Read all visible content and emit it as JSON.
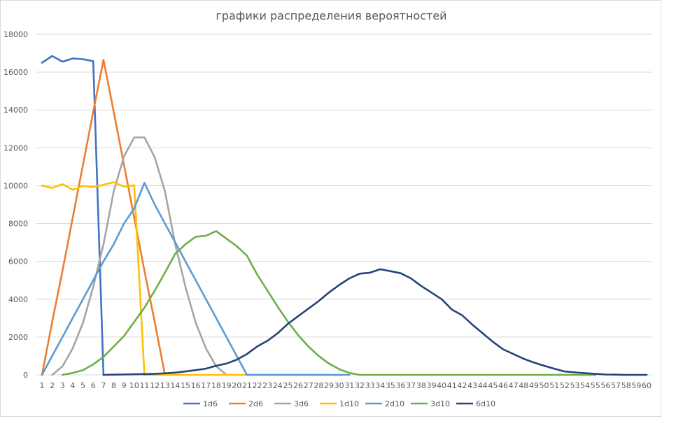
{
  "chart_data": {
    "type": "line",
    "title": "графики распределения вероятностей",
    "xlabel": "",
    "ylabel": "",
    "ylim": [
      0,
      18000
    ],
    "yticks": [
      0,
      2000,
      4000,
      6000,
      8000,
      10000,
      12000,
      14000,
      16000,
      18000
    ],
    "grid": true,
    "legend_position": "bottom",
    "x": [
      1,
      2,
      3,
      4,
      5,
      6,
      7,
      8,
      9,
      10,
      11,
      12,
      13,
      14,
      15,
      16,
      17,
      18,
      19,
      20,
      21,
      22,
      23,
      24,
      25,
      26,
      27,
      28,
      29,
      30,
      31,
      32,
      33,
      34,
      35,
      36,
      37,
      38,
      39,
      40,
      41,
      42,
      43,
      44,
      45,
      46,
      47,
      48,
      49,
      50,
      51,
      52,
      53,
      54,
      55,
      56,
      57,
      58,
      59,
      60
    ],
    "series": [
      {
        "name": "1d6",
        "color": "#4472c4",
        "values": [
          16500,
          16850,
          16550,
          16720,
          16680,
          16580,
          0,
          null,
          null,
          null,
          null,
          null,
          null,
          null,
          null,
          null,
          null,
          null,
          null,
          null,
          null,
          null,
          null,
          null,
          null,
          null,
          null,
          null,
          null,
          null,
          null,
          null,
          null,
          null,
          null,
          null,
          null,
          null,
          null,
          null,
          null,
          null,
          null,
          null,
          null,
          null,
          null,
          null,
          null,
          null,
          null,
          null,
          null,
          null,
          null,
          null,
          null,
          null,
          null,
          null
        ]
      },
      {
        "name": "2d6",
        "color": "#ed7d31",
        "values": [
          0,
          2800,
          5500,
          8300,
          11100,
          13900,
          16650,
          13900,
          11100,
          8300,
          5500,
          2800,
          0,
          null,
          null,
          null,
          null,
          null,
          null,
          null,
          null,
          null,
          null,
          null,
          null,
          null,
          null,
          null,
          null,
          null,
          null,
          null,
          null,
          null,
          null,
          null,
          null,
          null,
          null,
          null,
          null,
          null,
          null,
          null,
          null,
          null,
          null,
          null,
          null,
          null,
          null,
          null,
          null,
          null,
          null,
          null,
          null,
          null,
          null,
          null
        ]
      },
      {
        "name": "3d6",
        "color": "#a5a5a5",
        "values": [
          null,
          0,
          450,
          1400,
          2750,
          4650,
          6900,
          9700,
          11550,
          12550,
          12550,
          11500,
          9700,
          6900,
          4650,
          2750,
          1400,
          450,
          0,
          null,
          null,
          null,
          null,
          null,
          null,
          null,
          null,
          null,
          null,
          null,
          null,
          null,
          null,
          null,
          null,
          null,
          null,
          null,
          null,
          null,
          null,
          null,
          null,
          null,
          null,
          null,
          null,
          null,
          null,
          null,
          null,
          null,
          null,
          null,
          null,
          null,
          null,
          null,
          null,
          null
        ]
      },
      {
        "name": "1d10",
        "color": "#ffc000",
        "values": [
          10000,
          9880,
          10080,
          9780,
          9980,
          9920,
          10050,
          10180,
          9950,
          10020,
          0,
          0,
          0,
          0,
          0,
          0,
          0,
          0,
          0,
          0,
          0,
          0,
          0,
          0,
          0,
          0,
          0,
          0,
          0,
          0,
          null,
          null,
          null,
          null,
          null,
          null,
          null,
          null,
          null,
          null,
          null,
          null,
          null,
          null,
          null,
          null,
          null,
          null,
          null,
          null,
          null,
          null,
          null,
          null,
          null,
          null,
          null,
          null,
          null,
          null
        ]
      },
      {
        "name": "2d10",
        "color": "#5b9bd5",
        "values": [
          0,
          1000,
          2000,
          3000,
          4000,
          5000,
          6000,
          6900,
          8000,
          8800,
          10150,
          9000,
          8000,
          7000,
          6000,
          5000,
          4000,
          3000,
          2000,
          1000,
          0,
          0,
          0,
          0,
          0,
          0,
          0,
          0,
          0,
          0,
          0,
          null,
          null,
          null,
          null,
          null,
          null,
          null,
          null,
          null,
          null,
          null,
          null,
          null,
          null,
          null,
          null,
          null,
          null,
          null,
          null,
          null,
          null,
          null,
          null,
          null,
          null,
          null,
          null,
          null
        ]
      },
      {
        "name": "3d10",
        "color": "#70ad47",
        "values": [
          null,
          null,
          0,
          100,
          250,
          550,
          950,
          1500,
          2050,
          2800,
          3550,
          4450,
          5400,
          6400,
          6900,
          7300,
          7350,
          7600,
          7200,
          6800,
          6300,
          5300,
          4450,
          3600,
          2800,
          2100,
          1500,
          1000,
          600,
          300,
          100,
          0,
          0,
          0,
          0,
          0,
          0,
          0,
          0,
          0,
          0,
          0,
          0,
          0,
          0,
          0,
          0,
          0,
          0,
          0,
          0,
          0,
          0,
          0,
          0,
          null,
          null,
          null,
          null,
          null
        ]
      },
      {
        "name": "6d10",
        "color": "#264478",
        "values": [
          null,
          null,
          null,
          null,
          null,
          null,
          0,
          10,
          20,
          30,
          40,
          55,
          80,
          120,
          180,
          250,
          330,
          480,
          600,
          800,
          1100,
          1500,
          1800,
          2200,
          2700,
          3100,
          3500,
          3900,
          4350,
          4750,
          5100,
          5350,
          5400,
          5580,
          5480,
          5370,
          5100,
          4700,
          4350,
          4000,
          3450,
          3150,
          2650,
          2200,
          1750,
          1350,
          1100,
          850,
          650,
          480,
          320,
          180,
          130,
          90,
          50,
          20,
          10,
          0,
          0,
          0
        ]
      }
    ]
  }
}
